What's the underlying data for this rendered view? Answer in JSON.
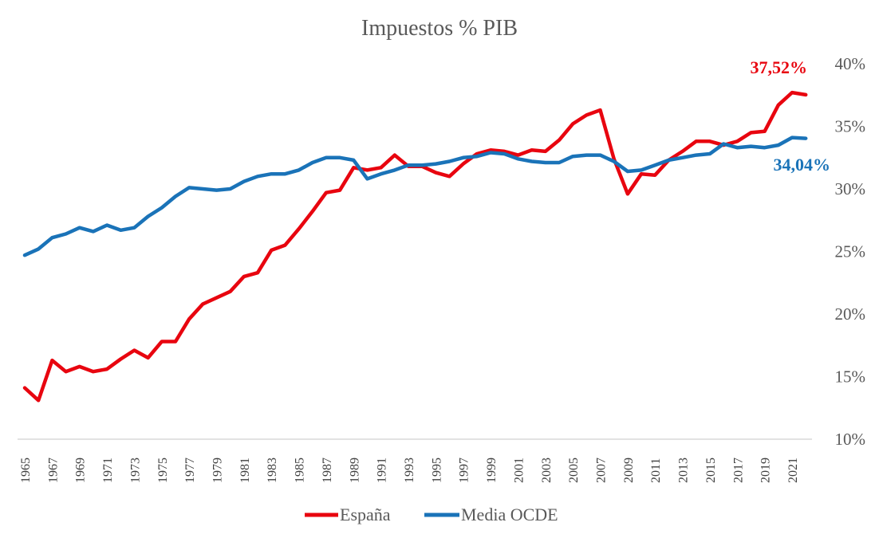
{
  "chart_data": {
    "type": "line",
    "title": "Impuestos % PIB",
    "xlabel": "",
    "ylabel": "",
    "ylim": [
      10,
      40
    ],
    "yticks": [
      "10%",
      "15%",
      "20%",
      "25%",
      "30%",
      "35%",
      "40%"
    ],
    "ytick_values": [
      10,
      15,
      20,
      25,
      30,
      35,
      40
    ],
    "x": [
      1965,
      1966,
      1967,
      1968,
      1969,
      1970,
      1971,
      1972,
      1973,
      1974,
      1975,
      1976,
      1977,
      1978,
      1979,
      1980,
      1981,
      1982,
      1983,
      1984,
      1985,
      1986,
      1987,
      1988,
      1989,
      1990,
      1991,
      1992,
      1993,
      1994,
      1995,
      1996,
      1997,
      1998,
      1999,
      2000,
      2001,
      2002,
      2003,
      2004,
      2005,
      2006,
      2007,
      2008,
      2009,
      2010,
      2011,
      2012,
      2013,
      2014,
      2015,
      2016,
      2017,
      2018,
      2019,
      2020,
      2021,
      2022
    ],
    "xticks": [
      "1965",
      "1967",
      "1969",
      "1971",
      "1973",
      "1975",
      "1977",
      "1979",
      "1981",
      "1983",
      "1985",
      "1987",
      "1989",
      "1991",
      "1993",
      "1995",
      "1997",
      "1999",
      "2001",
      "2003",
      "2005",
      "2007",
      "2009",
      "2011",
      "2013",
      "2015",
      "2017",
      "2019",
      "2021"
    ],
    "grid": false,
    "legend_position": "bottom",
    "series": [
      {
        "name": "España",
        "color": "#e8050f",
        "end_label": "37,52%",
        "values": [
          14.1,
          13.1,
          16.3,
          15.4,
          15.8,
          15.4,
          15.6,
          16.4,
          17.1,
          16.5,
          17.8,
          17.8,
          19.6,
          20.8,
          21.3,
          21.8,
          23.0,
          23.3,
          25.1,
          25.5,
          26.8,
          28.2,
          29.7,
          29.9,
          31.7,
          31.5,
          31.7,
          32.7,
          31.8,
          31.8,
          31.3,
          31.0,
          32.0,
          32.8,
          33.1,
          33.0,
          32.7,
          33.1,
          33.0,
          33.9,
          35.2,
          35.9,
          36.3,
          32.4,
          29.6,
          31.2,
          31.1,
          32.3,
          33.0,
          33.8,
          33.8,
          33.5,
          33.8,
          34.5,
          34.6,
          36.7,
          37.7,
          37.52
        ]
      },
      {
        "name": "Media OCDE",
        "color": "#1a73b8",
        "end_label": "34,04%",
        "values": [
          24.7,
          25.2,
          26.1,
          26.4,
          26.9,
          26.6,
          27.1,
          26.7,
          26.9,
          27.8,
          28.5,
          29.4,
          30.1,
          30.0,
          29.9,
          30.0,
          30.6,
          31.0,
          31.2,
          31.2,
          31.5,
          32.1,
          32.5,
          32.5,
          32.3,
          30.8,
          31.2,
          31.5,
          31.9,
          31.9,
          32.0,
          32.2,
          32.5,
          32.6,
          32.9,
          32.8,
          32.4,
          32.2,
          32.1,
          32.1,
          32.6,
          32.7,
          32.7,
          32.2,
          31.4,
          31.5,
          31.9,
          32.3,
          32.5,
          32.7,
          32.8,
          33.6,
          33.3,
          33.4,
          33.3,
          33.5,
          34.1,
          34.04
        ]
      }
    ]
  }
}
